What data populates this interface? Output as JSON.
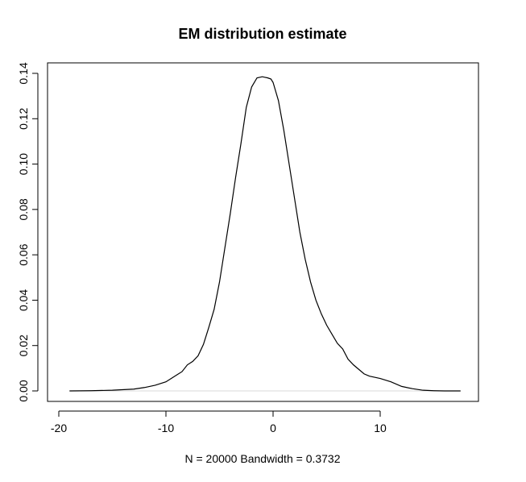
{
  "chart_data": {
    "type": "line",
    "title": "EM distribution estimate",
    "xlabel": "N = 20000   Bandwidth = 0.3732",
    "ylabel": "",
    "xlim": [
      -20,
      19
    ],
    "ylim": [
      -0.005,
      0.145
    ],
    "x_ticks": [
      -20,
      -10,
      0,
      10
    ],
    "x_tick_labels": [
      "-20",
      "-10",
      "0",
      "10"
    ],
    "y_ticks": [
      0,
      0.02,
      0.04,
      0.06,
      0.08,
      0.1,
      0.12,
      0.14
    ],
    "y_tick_labels": [
      "0.00",
      "0.02",
      "0.04",
      "0.06",
      "0.08",
      "0.10",
      "0.12",
      "0.14"
    ],
    "grid": false,
    "series": [
      {
        "x": [
          -19,
          -17,
          -15,
          -13,
          -12,
          -11,
          -10,
          -9,
          -8.5,
          -8,
          -7.5,
          -7,
          -6.5,
          -6,
          -5.5,
          -5,
          -4.5,
          -4,
          -3.5,
          -3,
          -2.5,
          -2,
          -1.5,
          -1,
          -0.8,
          -0.5,
          -0.2,
          0,
          0.5,
          1,
          1.5,
          2,
          2.5,
          3,
          3.5,
          4,
          4.5,
          5,
          5.5,
          6,
          6.5,
          7,
          7.5,
          8,
          8.5,
          9,
          10,
          11,
          12,
          13,
          14,
          15,
          16,
          17.5
        ],
        "y": [
          0,
          0.0001,
          0.0003,
          0.0008,
          0.0015,
          0.0025,
          0.004,
          0.007,
          0.0085,
          0.0115,
          0.013,
          0.0155,
          0.0205,
          0.028,
          0.036,
          0.048,
          0.063,
          0.078,
          0.094,
          0.109,
          0.125,
          0.134,
          0.138,
          0.1385,
          0.1383,
          0.138,
          0.1375,
          0.136,
          0.128,
          0.115,
          0.1,
          0.085,
          0.07,
          0.058,
          0.048,
          0.04,
          0.034,
          0.029,
          0.025,
          0.021,
          0.0185,
          0.014,
          0.0115,
          0.0095,
          0.0075,
          0.0065,
          0.0055,
          0.004,
          0.002,
          0.001,
          0.0003,
          0.0001,
          0,
          0
        ]
      }
    ]
  }
}
